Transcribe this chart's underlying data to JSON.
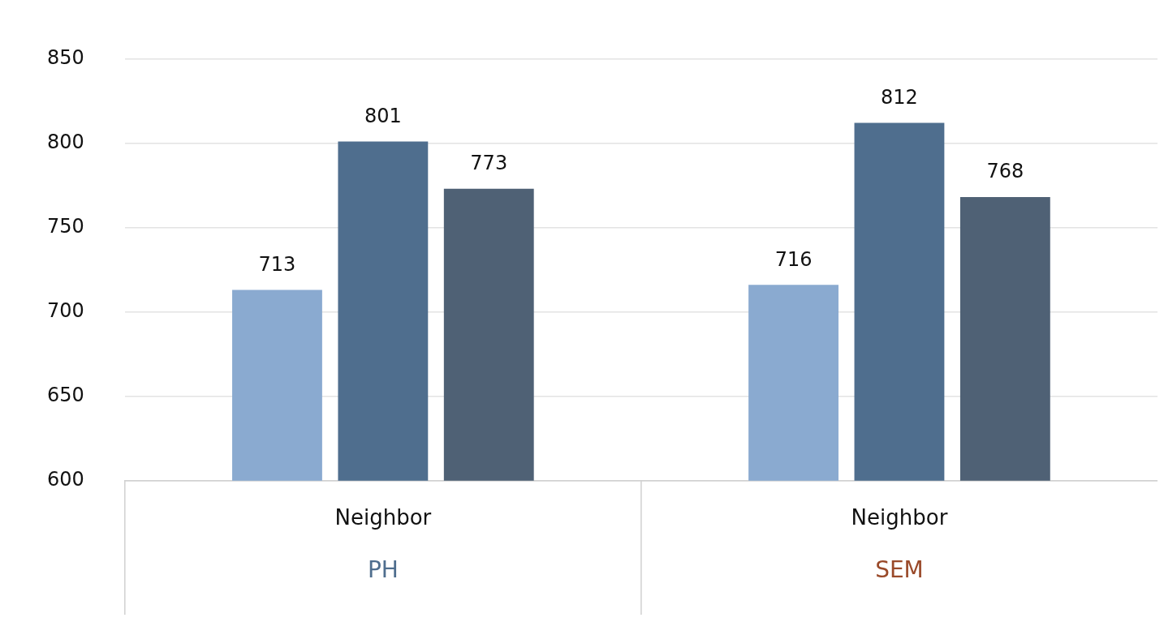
{
  "chart_data": {
    "type": "bar",
    "categories": [
      "Neighbor",
      "Neighbor"
    ],
    "series": [
      {
        "color": "#8aaad0",
        "values": [
          713,
          716
        ]
      },
      {
        "color": "#4f6e8e",
        "values": [
          801,
          812
        ]
      },
      {
        "color": "#4f6175",
        "values": [
          773,
          768
        ]
      }
    ],
    "ylim": [
      600,
      850
    ],
    "yticks": [
      600,
      650,
      700,
      750,
      800,
      850
    ],
    "grid": "y",
    "legend": false,
    "data_labels": true,
    "annotations": [
      "PH",
      "SEM"
    ]
  }
}
